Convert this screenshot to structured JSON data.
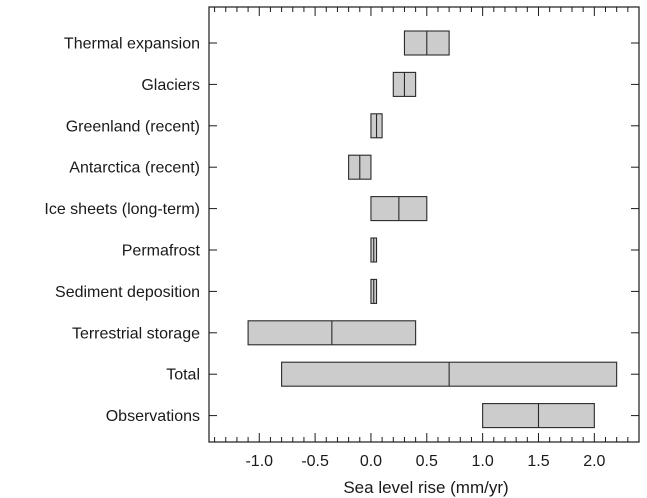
{
  "chart_data": {
    "type": "bar",
    "orientation": "horizontal",
    "xlabel": "Sea level rise (mm/yr)",
    "ylabel": "",
    "title": "",
    "xlim": [
      -1.45,
      2.4
    ],
    "x_ticks": [
      "-1.0",
      "-0.5",
      "0.0",
      "0.5",
      "1.0",
      "1.5",
      "2.0"
    ],
    "x_tick_values": [
      -1.0,
      -0.5,
      0.0,
      0.5,
      1.0,
      1.5,
      2.0
    ],
    "x_minor_step": 0.1,
    "grid": false,
    "bar_color": "#cccccc",
    "edge_color": "#2a2a2a",
    "categories": [
      "Thermal expansion",
      "Glaciers",
      "Greenland (recent)",
      "Antarctica (recent)",
      "Ice sheets (long-term)",
      "Permafrost",
      "Sediment deposition",
      "Terrestrial storage",
      "Total",
      "Observations"
    ],
    "ranges": [
      {
        "low": 0.3,
        "mid": 0.5,
        "high": 0.7
      },
      {
        "low": 0.2,
        "mid": 0.3,
        "high": 0.4
      },
      {
        "low": 0.0,
        "mid": 0.05,
        "high": 0.1
      },
      {
        "low": -0.2,
        "mid": -0.1,
        "high": 0.0
      },
      {
        "low": 0.0,
        "mid": 0.25,
        "high": 0.5
      },
      {
        "low": 0.0,
        "mid": 0.025,
        "high": 0.05
      },
      {
        "low": 0.0,
        "mid": 0.025,
        "high": 0.05
      },
      {
        "low": -1.1,
        "mid": -0.35,
        "high": 0.4
      },
      {
        "low": -0.8,
        "mid": 0.7,
        "high": 2.2
      },
      {
        "low": 1.0,
        "mid": 1.5,
        "high": 2.0
      }
    ]
  }
}
